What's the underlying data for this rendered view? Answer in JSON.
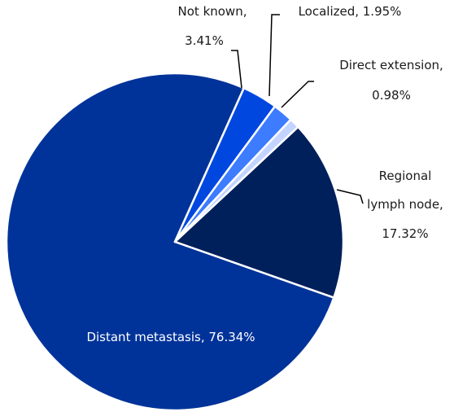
{
  "chart_data": {
    "type": "pie",
    "categories": [
      "Regional lymph node",
      "Distant metastasis",
      "Not known",
      "Localized",
      "Direct extension"
    ],
    "values": [
      17.32,
      76.34,
      3.41,
      1.95,
      0.98
    ],
    "unit": "%",
    "colors": [
      "#00205b",
      "#003399",
      "#0047e0",
      "#3d7bff",
      "#c2d4ff"
    ],
    "data_labels": {
      "regional": {
        "line1": "Regional",
        "line2": "lymph node,",
        "line3": "17.32%"
      },
      "distant": {
        "line1": "Distant metastasis, 76.34%"
      },
      "not_known": {
        "line1": "Not known,",
        "line2": "3.41%"
      },
      "localized": {
        "line1": "Localized, 1.95%"
      },
      "direct": {
        "line1": "Direct extension,",
        "line2": "0.98%"
      }
    },
    "title": "",
    "legend": "none"
  }
}
